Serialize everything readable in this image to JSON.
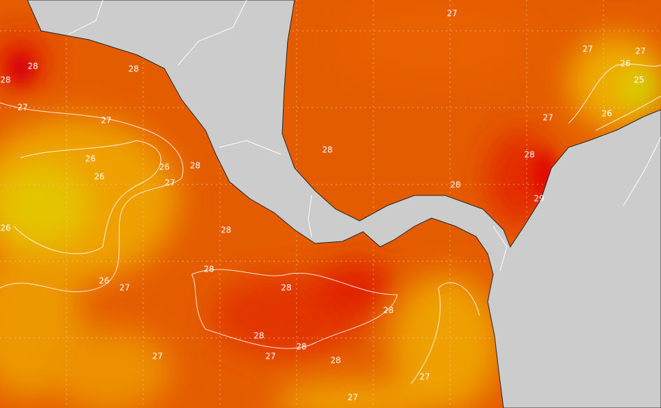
{
  "contour_labels": [
    28,
    28,
    28,
    27,
    27,
    26,
    26,
    26,
    27,
    28,
    26,
    28,
    26,
    27,
    28,
    28,
    28,
    28,
    28,
    27,
    27,
    28,
    27,
    27,
    27,
    27,
    27,
    26,
    25,
    26,
    27,
    28,
    28,
    28,
    29
  ]
}
